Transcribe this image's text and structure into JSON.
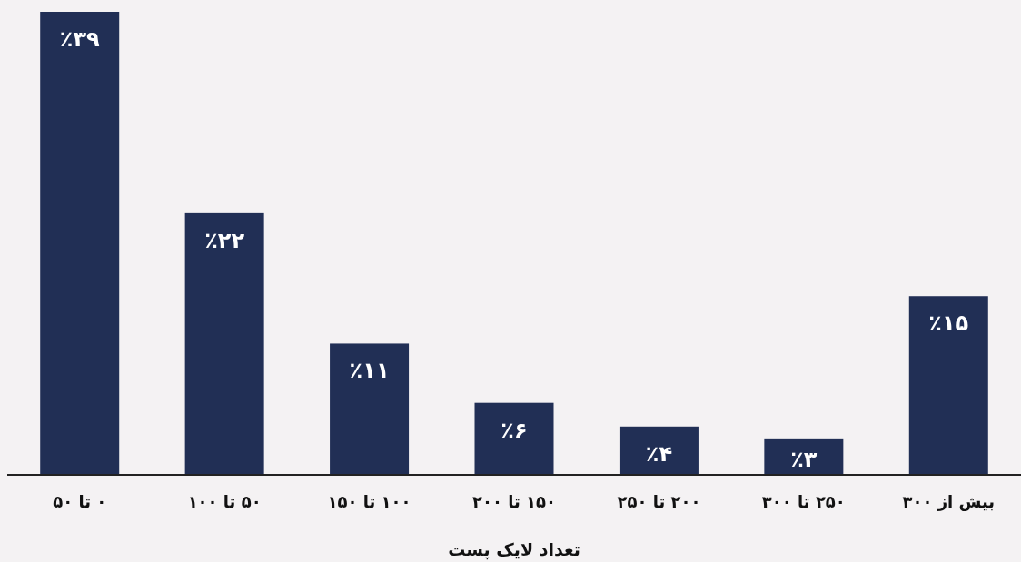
{
  "chart_data": {
    "type": "bar",
    "xlabel": "تعداد لایک پست",
    "categories": [
      "۰ تا ۵۰",
      "۵۰ تا ۱۰۰",
      "۱۰۰ تا ۱۵۰",
      "۱۵۰ تا ۲۰۰",
      "۲۰۰ تا ۲۵۰",
      "۲۵۰ تا ۳۰۰",
      "بیش از ۳۰۰"
    ],
    "values": [
      39,
      22,
      11,
      6,
      4,
      3,
      15
    ],
    "value_labels": [
      "٪۳۹",
      "٪۲۲",
      "٪۱۱",
      "٪۶",
      "٪۴",
      "٪۳",
      "٪۱۵"
    ],
    "color": "#212f55"
  }
}
